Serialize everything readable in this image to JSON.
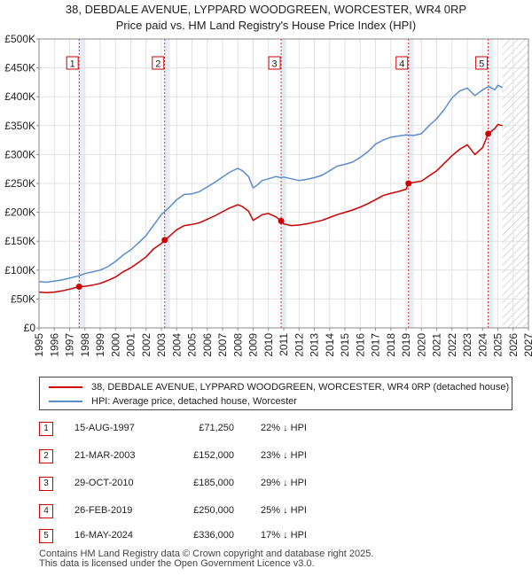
{
  "title_line1": "38, DEBDALE AVENUE, LYPPARD WOODGREEN, WORCESTER, WR4 0RP",
  "title_line2": "Price paid vs. HM Land Registry's House Price Index (HPI)",
  "colors": {
    "property": "#cc0000",
    "hpi": "#5b8ccc",
    "marker": "#cc0000",
    "band": "#e8eef8",
    "future_hatch": "#bbbbbb"
  },
  "chart_data": {
    "type": "line",
    "xlim": [
      1995,
      2027
    ],
    "ylim": [
      0,
      500000
    ],
    "x_ticks": [
      "1995",
      "1996",
      "1997",
      "1998",
      "1999",
      "2000",
      "2001",
      "2002",
      "2003",
      "2004",
      "2005",
      "2006",
      "2007",
      "2008",
      "2009",
      "2010",
      "2011",
      "2012",
      "2013",
      "2014",
      "2015",
      "2016",
      "2017",
      "2018",
      "2019",
      "2020",
      "2021",
      "2022",
      "2023",
      "2024",
      "2025",
      "2026",
      "2027"
    ],
    "y_ticks": [
      {
        "value": 0,
        "label": "£0"
      },
      {
        "value": 50000,
        "label": "£50K"
      },
      {
        "value": 100000,
        "label": "£100K"
      },
      {
        "value": 150000,
        "label": "£150K"
      },
      {
        "value": 200000,
        "label": "£200K"
      },
      {
        "value": 250000,
        "label": "£250K"
      },
      {
        "value": 300000,
        "label": "£300K"
      },
      {
        "value": 350000,
        "label": "£350K"
      },
      {
        "value": 400000,
        "label": "£400K"
      },
      {
        "value": 450000,
        "label": "£450K"
      },
      {
        "value": 500000,
        "label": "£500K"
      }
    ],
    "data_end_year": 2025.3,
    "series": [
      {
        "name": "HPI: Average price, detached house, Worcester",
        "color": "#5b8ccc",
        "x": [
          1995.0,
          1995.5,
          1996.0,
          1996.5,
          1997.0,
          1997.6,
          1998.0,
          1998.5,
          1999.0,
          1999.5,
          2000.0,
          2000.5,
          2001.0,
          2001.5,
          2002.0,
          2002.5,
          2003.0,
          2003.5,
          2004.0,
          2004.5,
          2005.0,
          2005.5,
          2006.0,
          2006.5,
          2007.0,
          2007.5,
          2008.0,
          2008.3,
          2008.7,
          2009.0,
          2009.3,
          2009.6,
          2010.0,
          2010.5,
          2010.8,
          2011.0,
          2011.5,
          2012.0,
          2012.5,
          2013.0,
          2013.5,
          2014.0,
          2014.5,
          2015.0,
          2015.5,
          2016.0,
          2016.5,
          2017.0,
          2017.5,
          2018.0,
          2018.5,
          2019.0,
          2019.5,
          2020.0,
          2020.5,
          2021.0,
          2021.5,
          2022.0,
          2022.5,
          2023.0,
          2023.5,
          2024.0,
          2024.4,
          2024.8,
          2025.0,
          2025.3
        ],
        "values": [
          80000,
          79000,
          81000,
          83000,
          86000,
          90000,
          94000,
          97000,
          100000,
          106000,
          115000,
          126000,
          135000,
          147000,
          160000,
          178000,
          196000,
          208000,
          222000,
          231000,
          232000,
          236000,
          244000,
          252000,
          261000,
          270000,
          276000,
          272000,
          262000,
          242000,
          248000,
          255000,
          258000,
          262000,
          260000,
          261000,
          258000,
          255000,
          257000,
          260000,
          264000,
          272000,
          280000,
          283000,
          287000,
          295000,
          305000,
          318000,
          325000,
          330000,
          332000,
          334000,
          333000,
          336000,
          350000,
          362000,
          378000,
          398000,
          410000,
          415000,
          402000,
          412000,
          418000,
          412000,
          420000,
          416000
        ]
      },
      {
        "name": "38, DEBDALE AVENUE, LYPPARD WOODGREEN, WORCESTER, WR4 0RP (detached house)",
        "color": "#cc0000",
        "x": [
          1995.0,
          1995.5,
          1996.0,
          1996.5,
          1997.0,
          1997.62,
          1998.0,
          1998.5,
          1999.0,
          1999.5,
          2000.0,
          2000.5,
          2001.0,
          2001.5,
          2002.0,
          2002.5,
          2003.0,
          2003.22,
          2003.5,
          2004.0,
          2004.5,
          2005.0,
          2005.5,
          2006.0,
          2006.5,
          2007.0,
          2007.5,
          2008.0,
          2008.3,
          2008.7,
          2009.0,
          2009.3,
          2009.6,
          2010.0,
          2010.5,
          2010.83,
          2011.0,
          2011.5,
          2012.0,
          2012.5,
          2013.0,
          2013.5,
          2014.0,
          2014.5,
          2015.0,
          2015.5,
          2016.0,
          2016.5,
          2017.0,
          2017.5,
          2018.0,
          2018.5,
          2019.0,
          2019.16,
          2019.5,
          2020.0,
          2020.5,
          2021.0,
          2021.5,
          2022.0,
          2022.5,
          2023.0,
          2023.5,
          2024.0,
          2024.37,
          2024.8,
          2025.0,
          2025.3
        ],
        "values": [
          62000,
          61000,
          62000,
          64000,
          67000,
          71250,
          72000,
          74000,
          77000,
          82000,
          88000,
          97000,
          104000,
          113000,
          123000,
          137000,
          146000,
          152000,
          158000,
          170000,
          177000,
          179000,
          182000,
          188000,
          194000,
          201000,
          208000,
          213000,
          210000,
          202000,
          186000,
          191000,
          196000,
          198000,
          192000,
          185000,
          180000,
          177000,
          178000,
          180000,
          183000,
          186000,
          191000,
          196000,
          200000,
          204000,
          209000,
          215000,
          222000,
          229000,
          233000,
          236000,
          240000,
          250000,
          252000,
          254000,
          263000,
          272000,
          285000,
          298000,
          309000,
          317000,
          300000,
          312000,
          336000,
          345000,
          352000,
          350000
        ]
      }
    ],
    "sales": [
      {
        "label": "1",
        "x": 1997.62,
        "price": 71250
      },
      {
        "label": "2",
        "x": 2003.22,
        "price": 152000
      },
      {
        "label": "3",
        "x": 2010.83,
        "price": 185000
      },
      {
        "label": "4",
        "x": 2019.16,
        "price": 250000
      },
      {
        "label": "5",
        "x": 2024.37,
        "price": 336000
      }
    ]
  },
  "legend": {
    "property": "38, DEBDALE AVENUE, LYPPARD WOODGREEN, WORCESTER, WR4 0RP (detached house)",
    "hpi": "HPI: Average price, detached house, Worcester"
  },
  "sales_table": [
    {
      "num": "1",
      "date": "15-AUG-1997",
      "price": "£71,250",
      "hpi": "22% ↓ HPI"
    },
    {
      "num": "2",
      "date": "21-MAR-2003",
      "price": "£152,000",
      "hpi": "23% ↓ HPI"
    },
    {
      "num": "3",
      "date": "29-OCT-2010",
      "price": "£185,000",
      "hpi": "29% ↓ HPI"
    },
    {
      "num": "4",
      "date": "26-FEB-2019",
      "price": "£250,000",
      "hpi": "25% ↓ HPI"
    },
    {
      "num": "5",
      "date": "16-MAY-2024",
      "price": "£336,000",
      "hpi": "17% ↓ HPI"
    }
  ],
  "footer": {
    "line1": "Contains HM Land Registry data © Crown copyright and database right 2025.",
    "line2": "This data is licensed under the Open Government Licence v3.0."
  }
}
